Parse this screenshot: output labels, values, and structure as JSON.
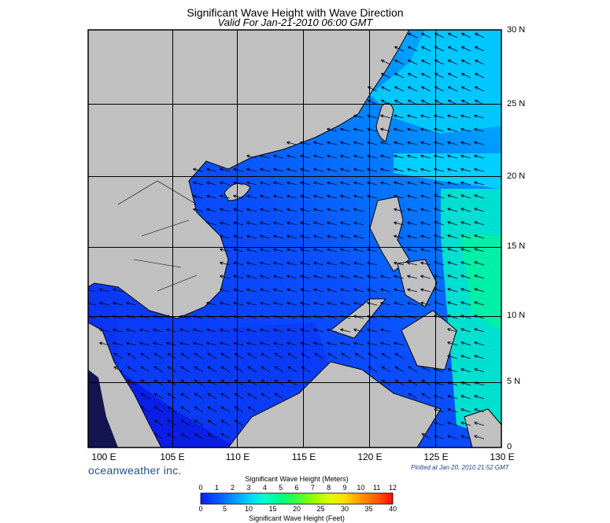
{
  "header": {
    "title": "Significant Wave Height with Wave Direction",
    "subtitle": "Valid For Jan-21-2010 06:00 GMT"
  },
  "map": {
    "lon_labels": [
      "100 E",
      "105 E",
      "110 E",
      "115 E",
      "120 E",
      "125 E",
      "130 E"
    ],
    "lat_labels": [
      "0",
      "5 N",
      "10 N",
      "15 N",
      "20 N",
      "25 N",
      "30 N"
    ],
    "land_color": "#c0c0c0",
    "gridline_color": "#000000",
    "arrow_color": "#0a0a2a",
    "dominant_wave_direction": "from the northeast"
  },
  "footer": {
    "brand": "oceanweather inc.",
    "plotted": "Plotted at Jan 20, 2010 21:52 GMT"
  },
  "colorbar": {
    "title_meters": "Significant Wave Height (Meters)",
    "title_feet": "Significant Wave Height (Feet)",
    "meter_ticks": [
      "0",
      "1",
      "2",
      "3",
      "4",
      "5",
      "6",
      "7",
      "8",
      "9",
      "10",
      "11",
      "12"
    ],
    "feet_ticks": [
      "0",
      "5",
      "10",
      "15",
      "20",
      "25",
      "30",
      "35",
      "40"
    ],
    "colors": [
      "#0a1fff",
      "#0a60ff",
      "#00a8ff",
      "#00e6e6",
      "#00ff9a",
      "#3cff3c",
      "#b4ff00",
      "#ffff00",
      "#ffb400",
      "#ff5a00",
      "#ff0a0a"
    ]
  }
}
